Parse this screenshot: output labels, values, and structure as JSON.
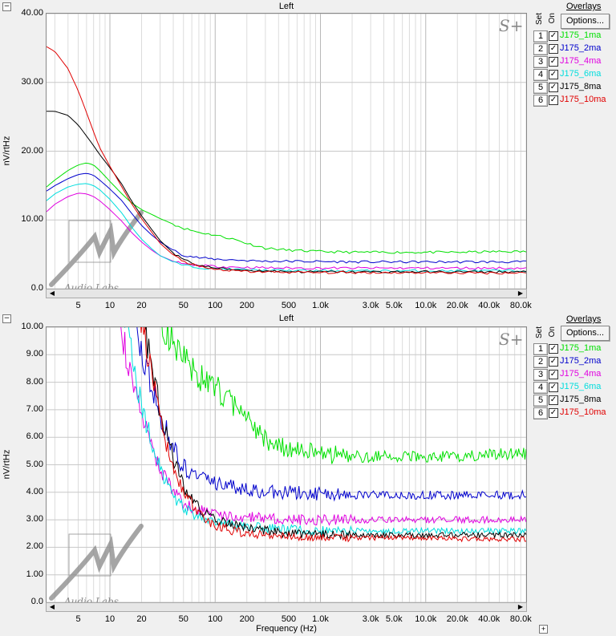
{
  "panels": [
    {
      "title": "Left",
      "ylabel": "nV/rtHz",
      "xlabel": "",
      "ylim": [
        0,
        40
      ],
      "yticks": [
        "0.0",
        "10.00",
        "20.00",
        "30.00",
        "40.00"
      ],
      "ytick_values": [
        0,
        10,
        20,
        30,
        40
      ]
    },
    {
      "title": "Left",
      "ylabel": "nV/rtHz",
      "xlabel": "Frequency (Hz)",
      "ylim": [
        0,
        10
      ],
      "yticks": [
        "0.0",
        "1.00",
        "2.00",
        "3.00",
        "4.00",
        "5.00",
        "6.00",
        "7.00",
        "8.00",
        "9.00",
        "10.00"
      ],
      "ytick_values": [
        0,
        1,
        2,
        3,
        4,
        5,
        6,
        7,
        8,
        9,
        10
      ]
    }
  ],
  "xticks": [
    "5",
    "10",
    "20",
    "50",
    "100",
    "200",
    "500",
    "1.0k",
    "3.0k",
    "5.0k",
    "10.0k",
    "20.0k",
    "40.0k",
    "80.0k"
  ],
  "xtick_values": [
    5,
    10,
    20,
    50,
    100,
    200,
    500,
    1000,
    3000,
    5000,
    10000,
    20000,
    40000,
    80000
  ],
  "xlim": [
    2.5,
    90000
  ],
  "overlays": {
    "title": "Overlays",
    "options_label": "Options...",
    "col_set": "Set",
    "col_on": "On",
    "items": [
      {
        "num": "1",
        "name": "J175_1ma",
        "color": "#00e000",
        "checked": "✓"
      },
      {
        "num": "2",
        "name": "J175_2ma",
        "color": "#0000cc",
        "checked": "✓"
      },
      {
        "num": "3",
        "name": "J175_4ma",
        "color": "#e000e0",
        "checked": "✓"
      },
      {
        "num": "4",
        "name": "J175_6ma",
        "color": "#00dddd",
        "checked": "✓"
      },
      {
        "num": "5",
        "name": "J175_8ma",
        "color": "#000000",
        "checked": "✓"
      },
      {
        "num": "6",
        "name": "J175_10ma",
        "color": "#e00000",
        "checked": "✓"
      }
    ]
  },
  "watermark": {
    "logo_text": "Audio Labs",
    "corner_mark": "S+"
  },
  "chart_data": {
    "type": "line",
    "x_scale": "log",
    "xlabel": "Frequency (Hz)",
    "ylabel": "nV/rtHz",
    "series": [
      {
        "name": "J175_1ma",
        "color": "#00e000",
        "x": [
          2.5,
          3,
          4,
          5,
          6,
          7,
          8,
          10,
          13,
          16,
          20,
          25,
          30,
          40,
          50,
          70,
          100,
          150,
          200,
          300,
          500,
          1000,
          2000,
          5000,
          10000,
          20000,
          50000,
          90000
        ],
        "y": [
          14.8,
          15.8,
          17.2,
          18.0,
          18.3,
          18.0,
          17.2,
          15.6,
          13.8,
          12.5,
          11.5,
          10.8,
          10.2,
          9.4,
          8.8,
          8.2,
          7.8,
          7.2,
          6.6,
          5.9,
          5.6,
          5.4,
          5.3,
          5.3,
          5.3,
          5.3,
          5.4,
          5.4
        ]
      },
      {
        "name": "J175_2ma",
        "color": "#0000cc",
        "x": [
          2.5,
          3,
          4,
          5,
          6,
          7,
          8,
          10,
          13,
          16,
          20,
          25,
          30,
          40,
          50,
          70,
          100,
          150,
          200,
          300,
          500,
          1000,
          2000,
          5000,
          10000,
          20000,
          50000,
          90000
        ],
        "y": [
          14.2,
          15.0,
          16.0,
          16.6,
          16.8,
          16.5,
          15.8,
          14.5,
          12.8,
          11.0,
          9.2,
          7.8,
          6.8,
          5.6,
          4.9,
          4.5,
          4.3,
          4.2,
          4.1,
          4.0,
          4.0,
          3.95,
          3.9,
          3.9,
          3.9,
          3.9,
          3.9,
          3.9
        ]
      },
      {
        "name": "J175_4ma",
        "color": "#e000e0",
        "x": [
          2.5,
          3,
          4,
          5,
          6,
          7,
          8,
          10,
          13,
          16,
          20,
          25,
          30,
          40,
          50,
          70,
          100,
          150,
          200,
          300,
          500,
          1000,
          2000,
          5000,
          10000,
          20000,
          50000,
          90000
        ],
        "y": [
          11.2,
          12.3,
          13.4,
          13.9,
          13.8,
          13.4,
          12.8,
          11.5,
          9.8,
          8.2,
          6.8,
          5.6,
          4.8,
          4.0,
          3.6,
          3.35,
          3.25,
          3.15,
          3.1,
          3.05,
          3.0,
          3.0,
          3.0,
          3.0,
          3.0,
          3.0,
          3.0,
          3.0
        ]
      },
      {
        "name": "J175_6ma",
        "color": "#00dddd",
        "x": [
          2.5,
          3,
          4,
          5,
          6,
          7,
          8,
          10,
          13,
          16,
          20,
          25,
          30,
          40,
          50,
          70,
          100,
          150,
          200,
          300,
          500,
          1000,
          2000,
          5000,
          10000,
          20000,
          50000,
          90000
        ],
        "y": [
          12.8,
          13.8,
          14.8,
          15.2,
          15.3,
          15.0,
          14.4,
          13.0,
          11.0,
          9.0,
          7.2,
          5.8,
          4.8,
          3.9,
          3.4,
          3.1,
          2.9,
          2.8,
          2.75,
          2.7,
          2.65,
          2.6,
          2.6,
          2.6,
          2.6,
          2.6,
          2.6,
          2.6
        ]
      },
      {
        "name": "J175_8ma",
        "color": "#000000",
        "x": [
          2.5,
          3,
          4,
          5,
          6,
          7,
          8,
          10,
          13,
          16,
          20,
          25,
          30,
          40,
          50,
          70,
          100,
          150,
          200,
          300,
          500,
          1000,
          2000,
          5000,
          10000,
          20000,
          50000,
          90000
        ],
        "y": [
          25.8,
          25.8,
          25.2,
          23.8,
          22.2,
          20.8,
          19.5,
          17.6,
          15.2,
          12.8,
          10.6,
          8.6,
          7.0,
          5.2,
          4.2,
          3.4,
          3.0,
          2.8,
          2.7,
          2.6,
          2.5,
          2.45,
          2.45,
          2.45,
          2.45,
          2.45,
          2.45,
          2.45
        ]
      },
      {
        "name": "J175_10ma",
        "color": "#e00000",
        "x": [
          2.5,
          3,
          4,
          5,
          6,
          7,
          8,
          10,
          13,
          16,
          20,
          25,
          30,
          40,
          50,
          70,
          100,
          150,
          200,
          300,
          500,
          1000,
          2000,
          5000,
          10000,
          20000,
          50000,
          90000
        ],
        "y": [
          35.2,
          34.5,
          32.0,
          28.8,
          25.6,
          22.8,
          20.5,
          17.8,
          14.8,
          12.4,
          10.2,
          8.2,
          6.6,
          4.9,
          4.0,
          3.2,
          2.8,
          2.6,
          2.5,
          2.45,
          2.4,
          2.35,
          2.35,
          2.35,
          2.35,
          2.3,
          2.3,
          2.3
        ]
      }
    ]
  }
}
